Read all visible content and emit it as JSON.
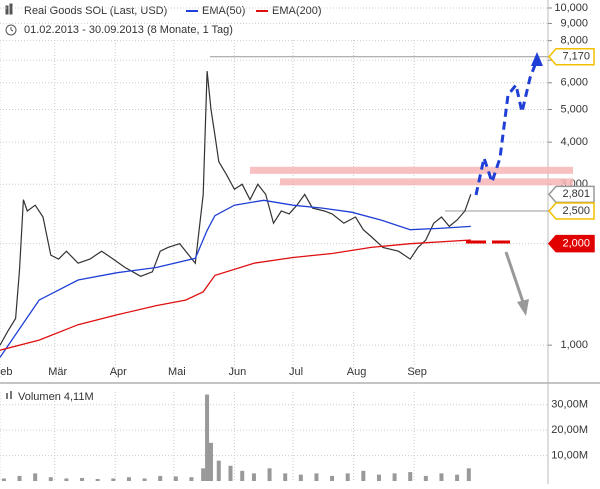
{
  "chart_data": {
    "type": "line",
    "title": "Real Goods SOL (Last, USD)",
    "subtitle": "01.02.2013 - 30.09.2013 (8 Monate, 1 Tag)",
    "log_scale": true,
    "grid": true,
    "xlim": [
      0,
      279
    ],
    "xticks": [
      {
        "value": 0,
        "label": "Feb"
      },
      {
        "value": 28,
        "label": "Mär"
      },
      {
        "value": 59,
        "label": "Apr"
      },
      {
        "value": 89,
        "label": "Mai"
      },
      {
        "value": 120,
        "label": "Jun"
      },
      {
        "value": 150,
        "label": "Jul"
      },
      {
        "value": 181,
        "label": "Aug"
      },
      {
        "value": 212,
        "label": "Sep"
      }
    ],
    "ylim": [
      0.844,
      10.56
    ],
    "yticks": [
      {
        "value": 1,
        "label": "1,000"
      },
      {
        "value": 2,
        "label": "2,000"
      },
      {
        "value": 3,
        "label": "3,000"
      },
      {
        "value": 4,
        "label": "4,000"
      },
      {
        "value": 5,
        "label": "5,000"
      },
      {
        "value": 6,
        "label": "6,000"
      },
      {
        "value": 7,
        "label": "7,000"
      },
      {
        "value": 8,
        "label": "8,000"
      },
      {
        "value": 9,
        "label": "9,000"
      },
      {
        "value": 10,
        "label": "10,000"
      }
    ],
    "series": [
      {
        "color": "#333333",
        "x": [
          0,
          4,
          8,
          10,
          12,
          14,
          18,
          22,
          26,
          30,
          34,
          40,
          46,
          52,
          58,
          64,
          68,
          72,
          78,
          82,
          86,
          92,
          100,
          104,
          106,
          108,
          110,
          112,
          116,
          120,
          124,
          128,
          132,
          136,
          140,
          144,
          148,
          152,
          156,
          160,
          166,
          170,
          176,
          182,
          186,
          190,
          196,
          204,
          210,
          214,
          218,
          222,
          226,
          230,
          234,
          238,
          241
        ],
        "values": [
          1.0,
          1.1,
          1.2,
          1.67,
          2.7,
          2.5,
          2.6,
          2.4,
          1.85,
          1.8,
          1.9,
          1.75,
          1.8,
          1.9,
          1.8,
          1.7,
          1.65,
          1.6,
          1.65,
          1.9,
          1.95,
          2.0,
          1.75,
          2.8,
          6.5,
          5.0,
          4.2,
          3.5,
          3.2,
          2.9,
          3.0,
          2.7,
          3.0,
          2.8,
          2.3,
          2.5,
          2.45,
          2.6,
          2.8,
          2.55,
          2.5,
          2.45,
          2.3,
          2.4,
          2.2,
          2.1,
          1.95,
          1.9,
          1.8,
          1.95,
          2.05,
          2.3,
          2.4,
          2.25,
          2.35,
          2.5,
          2.801
        ]
      },
      {
        "name": "EMA(50)",
        "color": "#1f3fd6",
        "x": [
          0,
          20,
          40,
          60,
          80,
          100,
          106,
          110,
          120,
          135,
          150,
          165,
          180,
          195,
          210,
          225,
          241
        ],
        "values": [
          0.92,
          1.36,
          1.56,
          1.64,
          1.7,
          1.81,
          2.19,
          2.42,
          2.6,
          2.69,
          2.6,
          2.55,
          2.48,
          2.35,
          2.2,
          2.22,
          2.25
        ]
      },
      {
        "name": "EMA(200)",
        "color": "#e01010",
        "x": [
          0,
          20,
          40,
          60,
          80,
          95,
          104,
          110,
          130,
          150,
          170,
          190,
          210,
          241
        ],
        "values": [
          0.966,
          1.035,
          1.15,
          1.23,
          1.31,
          1.36,
          1.44,
          1.61,
          1.75,
          1.82,
          1.87,
          1.95,
          2.0,
          2.05
        ]
      }
    ],
    "bands": [
      3.3,
      3.05
    ],
    "levels": [
      {
        "value": 7.17,
        "label": "7,170",
        "color": "#f0c000",
        "filled": false
      },
      {
        "value": 2.801,
        "label": "2,801",
        "color": "#999999",
        "filled": false
      },
      {
        "value": 2.5,
        "label": "2,500",
        "color": "#f0c000",
        "filled": false
      },
      {
        "value": 2.0,
        "label": "2,000",
        "color": "#e00000",
        "filled": true
      }
    ],
    "volume": {
      "label": "Volumen 4,11M",
      "color": "#999999",
      "ylim": [
        0,
        35
      ],
      "yticks": [
        {
          "value": 10,
          "label": "10,00M"
        },
        {
          "value": 20,
          "label": "20,00M"
        },
        {
          "value": 30,
          "label": "30,00M"
        }
      ],
      "x": [
        2,
        10,
        18,
        26,
        34,
        42,
        50,
        58,
        66,
        74,
        82,
        90,
        98,
        104,
        106,
        108,
        112,
        118,
        124,
        130,
        138,
        146,
        154,
        162,
        170,
        178,
        186,
        194,
        202,
        210,
        218,
        226,
        234,
        240
      ],
      "values": [
        1,
        2,
        3,
        1.5,
        1,
        1.2,
        0.8,
        1,
        1.5,
        1,
        2,
        1.8,
        1.5,
        5,
        34,
        15,
        8,
        6,
        4,
        3,
        5,
        3,
        2.5,
        3,
        2,
        3,
        4,
        2.5,
        3,
        3.5,
        2,
        3,
        2.5,
        5
      ]
    }
  }
}
